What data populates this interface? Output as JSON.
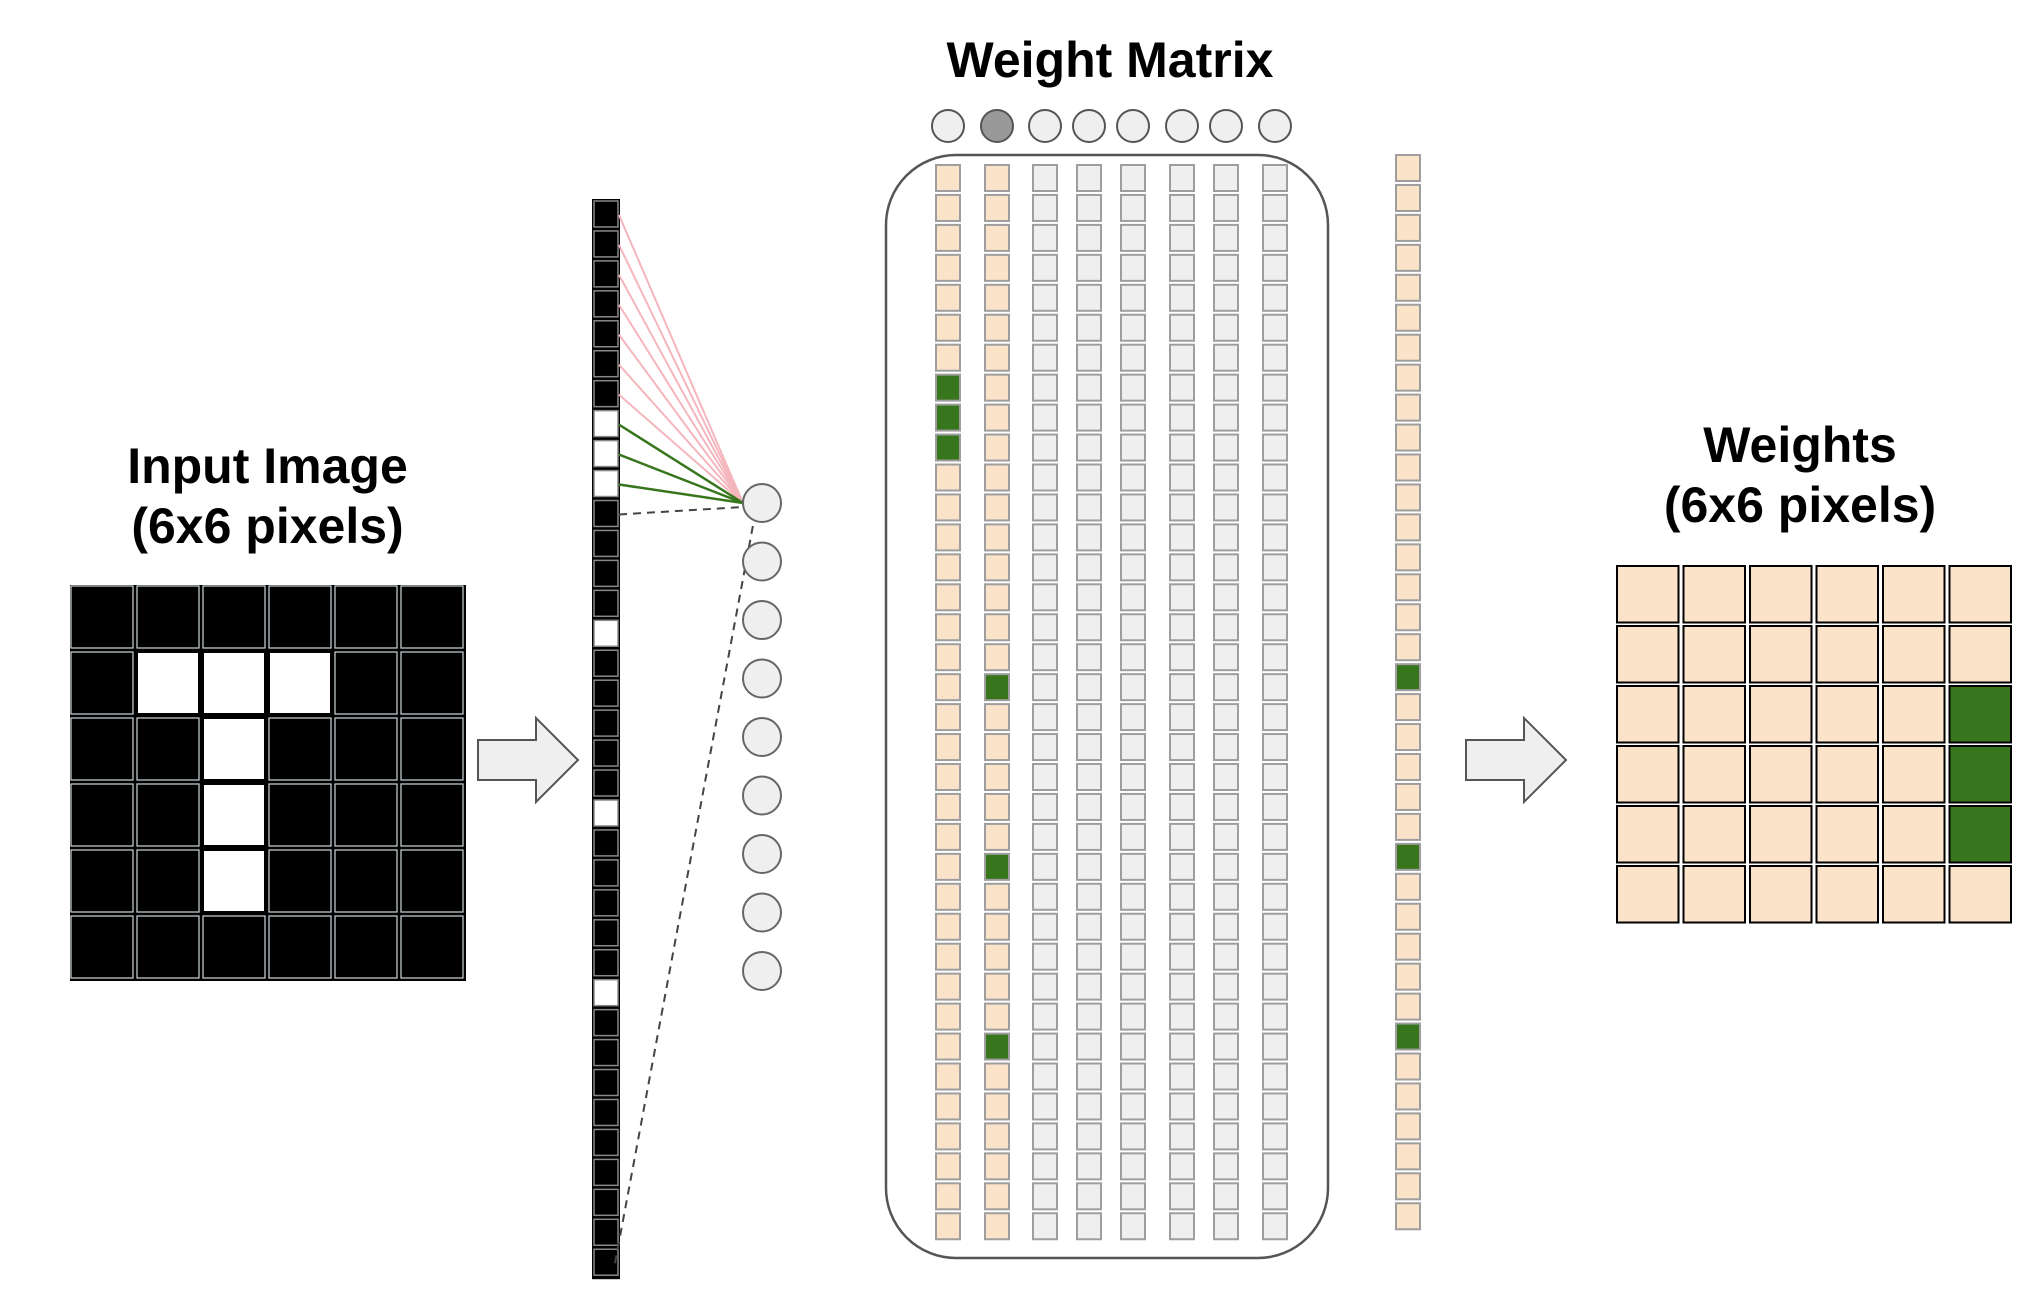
{
  "input_panel": {
    "title_line1": "Input Image",
    "title_line2": "(6x6 pixels)",
    "grid": [
      [
        0,
        0,
        0,
        0,
        0,
        0
      ],
      [
        0,
        1,
        1,
        1,
        0,
        0
      ],
      [
        0,
        0,
        1,
        0,
        0,
        0
      ],
      [
        0,
        0,
        1,
        0,
        0,
        0
      ],
      [
        0,
        0,
        1,
        0,
        0,
        0
      ],
      [
        0,
        0,
        0,
        0,
        0,
        0
      ]
    ]
  },
  "matrix_panel": {
    "title": "Weight Matrix",
    "neuron_count": 8,
    "active_neuron_index": 1,
    "highlighted_columns": [
      0,
      1
    ],
    "column_length": 36
  },
  "weights_panel": {
    "title_line1": "Weights",
    "title_line2": "(6x6 pixels)",
    "grid": [
      [
        0,
        0,
        0,
        0,
        0,
        0
      ],
      [
        0,
        0,
        0,
        0,
        0,
        0
      ],
      [
        0,
        0,
        0,
        0,
        0,
        1
      ],
      [
        0,
        0,
        0,
        0,
        0,
        1
      ],
      [
        0,
        0,
        0,
        0,
        0,
        1
      ],
      [
        0,
        0,
        0,
        0,
        0,
        0
      ]
    ]
  },
  "hidden_layer": {
    "node_count": 9
  },
  "colors": {
    "pixel_on": "#ffffff",
    "pixel_off": "#000000",
    "weight_base": "#fbe3c9",
    "weight_active": "#38761d",
    "inactive_column": "#efefef",
    "neuron_inactive": "#efefef",
    "neuron_active": "#999999",
    "arrow_fill": "#efefef",
    "connection_positive": "#38761d",
    "connection_negative": "#f4b6bc"
  }
}
